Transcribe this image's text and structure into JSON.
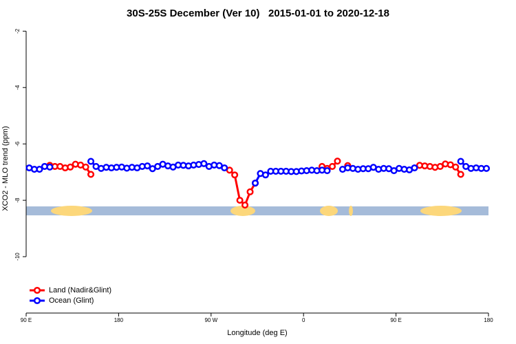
{
  "chart_data": {
    "type": "line",
    "title": "30S-25S December (Ver 10)   2015-01-01 to 2020-12-18",
    "x_label": "Longitude (deg E)",
    "y_label": "XCO2 - MLO trend (ppm)",
    "xlim": [
      90,
      540
    ],
    "xticks": [
      {
        "value": 90,
        "label": "90 E"
      },
      {
        "value": 180,
        "label": "180"
      },
      {
        "value": 270,
        "label": "90 W"
      },
      {
        "value": 360,
        "label": "0"
      },
      {
        "value": 450,
        "label": "90 E"
      },
      {
        "value": 540,
        "label": "180"
      }
    ],
    "ylim": [
      -12,
      -1.7
    ],
    "yticks": [
      -2,
      -4,
      -6,
      -8,
      -10
    ],
    "legend": "bottom-left",
    "x": [
      93,
      98,
      103,
      108,
      113,
      118,
      123,
      128,
      133,
      138,
      143,
      148,
      153,
      158,
      163,
      168,
      173,
      178,
      183,
      188,
      193,
      198,
      203,
      208,
      213,
      218,
      223,
      228,
      233,
      238,
      243,
      248,
      253,
      258,
      263,
      268,
      273,
      278,
      283,
      288,
      293,
      298,
      303,
      308,
      313,
      318,
      323,
      328,
      333,
      338,
      343,
      348,
      353,
      358,
      363,
      368,
      373,
      378,
      383,
      388,
      393,
      398,
      403,
      408,
      413,
      418,
      423,
      428,
      433,
      438,
      443,
      448,
      453,
      458,
      463,
      468,
      473,
      478,
      483,
      488,
      493,
      498,
      503,
      508,
      513,
      518,
      523,
      528,
      533,
      538
    ],
    "series": [
      {
        "name": "Land (Nadir&Glint)",
        "color": "#ff0000",
        "values": [
          null,
          null,
          null,
          null,
          -6.76,
          -6.8,
          -6.8,
          -6.85,
          -6.82,
          -6.72,
          -6.75,
          -6.82,
          -7.08,
          null,
          null,
          null,
          null,
          null,
          null,
          null,
          null,
          null,
          null,
          null,
          null,
          null,
          null,
          null,
          null,
          null,
          null,
          null,
          null,
          null,
          null,
          null,
          null,
          null,
          null,
          -6.93,
          -7.1,
          -8.0,
          -8.17,
          -7.7,
          -7.39,
          null,
          null,
          null,
          null,
          null,
          null,
          null,
          null,
          null,
          null,
          null,
          null,
          -6.8,
          -6.87,
          -6.8,
          -6.61,
          null,
          -6.77,
          null,
          null,
          null,
          null,
          null,
          null,
          null,
          null,
          null,
          null,
          null,
          null,
          null,
          -6.76,
          -6.78,
          -6.8,
          -6.83,
          -6.8,
          -6.71,
          -6.74,
          -6.82,
          -7.08,
          null,
          null,
          null,
          null,
          null
        ]
      },
      {
        "name": "Ocean (Glint)",
        "color": "#0000ff",
        "values": [
          -6.85,
          -6.9,
          -6.9,
          -6.8,
          -6.82,
          null,
          null,
          null,
          null,
          null,
          null,
          null,
          -6.62,
          -6.8,
          -6.87,
          -6.83,
          -6.85,
          -6.83,
          -6.82,
          -6.86,
          -6.83,
          -6.85,
          -6.8,
          -6.78,
          -6.88,
          -6.8,
          -6.72,
          -6.78,
          -6.82,
          -6.75,
          -6.76,
          -6.78,
          -6.75,
          -6.73,
          -6.7,
          -6.8,
          -6.75,
          -6.77,
          -6.85,
          null,
          null,
          null,
          null,
          null,
          -7.39,
          -7.05,
          -7.1,
          -6.97,
          -6.97,
          -6.97,
          -6.97,
          -6.98,
          -6.98,
          -6.96,
          -6.95,
          -6.93,
          -6.95,
          -6.93,
          -6.95,
          null,
          null,
          -6.9,
          -6.85,
          -6.87,
          -6.9,
          -6.88,
          -6.88,
          -6.83,
          -6.9,
          -6.87,
          -6.88,
          -6.95,
          -6.87,
          -6.9,
          -6.92,
          -6.85,
          null,
          null,
          null,
          null,
          null,
          null,
          null,
          null,
          -6.62,
          -6.8,
          -6.87,
          -6.85,
          -6.87,
          -6.87
        ]
      }
    ]
  }
}
